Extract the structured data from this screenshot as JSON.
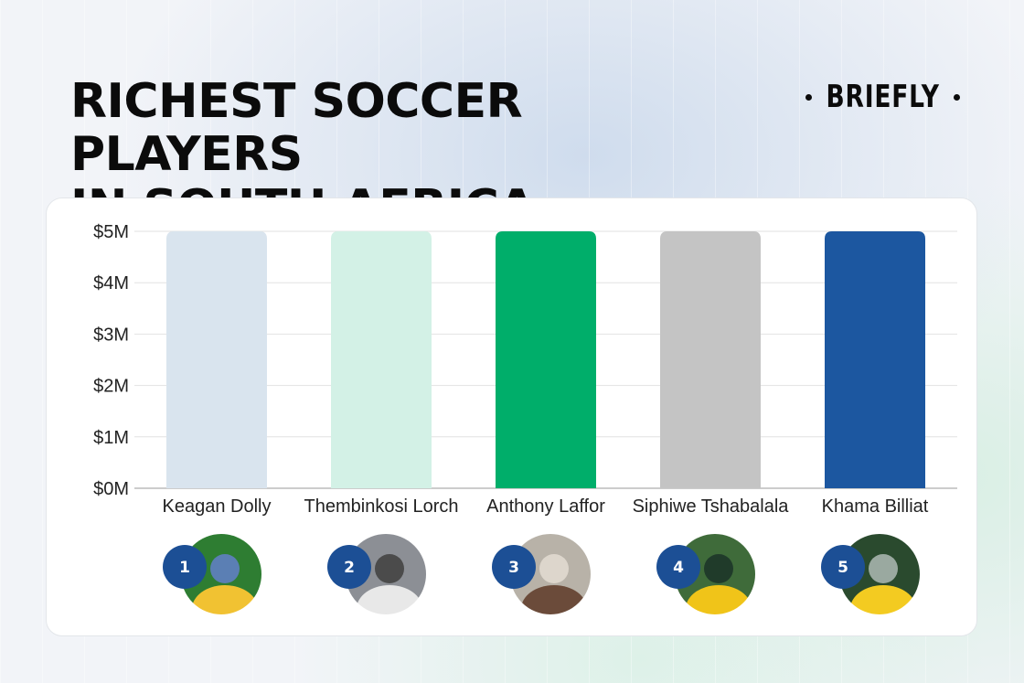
{
  "title_line1": "RICHEST SOCCER PLAYERS",
  "title_line2": "IN SOUTH AFRICA",
  "brand": "BRIEFLY",
  "chart_data": {
    "type": "bar",
    "title": "RICHEST SOCCER PLAYERS IN SOUTH AFRICA",
    "categories": [
      "Keagan Dolly",
      "Thembinkosi Lorch",
      "Anthony Laffor",
      "Siphiwe Tshabalala",
      "Khama Billiat"
    ],
    "values": [
      5,
      5,
      5,
      5,
      5
    ],
    "unit": "$M",
    "ylim": [
      0,
      5
    ],
    "yticks": [
      "$0M",
      "$1M",
      "$2M",
      "$3M",
      "$4M",
      "$5M"
    ],
    "grid": true,
    "bar_colors": [
      "#d9e4ee",
      "#d3f1e6",
      "#00ae6a",
      "#c4c4c4",
      "#1c57a0"
    ],
    "ranks": [
      "1",
      "2",
      "3",
      "4",
      "5"
    ]
  },
  "colors": {
    "badge": "#1c4f95",
    "title": "#0b0b0b"
  }
}
